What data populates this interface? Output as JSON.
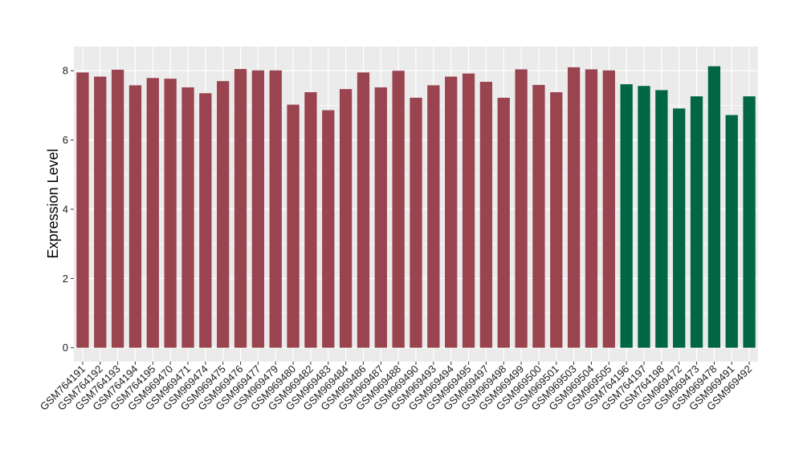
{
  "chart_data": {
    "type": "bar",
    "ylabel": "Expression Level",
    "xlabel": "",
    "ylim": [
      -0.4,
      8.7
    ],
    "yticks": [
      0,
      2,
      4,
      6,
      8
    ],
    "grid": true,
    "background": "#ebebeb",
    "grid_color": "#ffffff",
    "colors": {
      "group_a": "#9a4450",
      "group_b": "#006644"
    },
    "bars": [
      {
        "label": "GSM764191",
        "value": 7.95,
        "group": "group_a"
      },
      {
        "label": "GSM764192",
        "value": 7.83,
        "group": "group_a"
      },
      {
        "label": "GSM764193",
        "value": 8.03,
        "group": "group_a"
      },
      {
        "label": "GSM764194",
        "value": 7.58,
        "group": "group_a"
      },
      {
        "label": "GSM764195",
        "value": 7.79,
        "group": "group_a"
      },
      {
        "label": "GSM969470",
        "value": 7.77,
        "group": "group_a"
      },
      {
        "label": "GSM969471",
        "value": 7.52,
        "group": "group_a"
      },
      {
        "label": "GSM969474",
        "value": 7.35,
        "group": "group_a"
      },
      {
        "label": "GSM969475",
        "value": 7.7,
        "group": "group_a"
      },
      {
        "label": "GSM969476",
        "value": 8.05,
        "group": "group_a"
      },
      {
        "label": "GSM969477",
        "value": 8.01,
        "group": "group_a"
      },
      {
        "label": "GSM969479",
        "value": 8.01,
        "group": "group_a"
      },
      {
        "label": "GSM969480",
        "value": 7.02,
        "group": "group_a"
      },
      {
        "label": "GSM969482",
        "value": 7.38,
        "group": "group_a"
      },
      {
        "label": "GSM969483",
        "value": 6.86,
        "group": "group_a"
      },
      {
        "label": "GSM969484",
        "value": 7.47,
        "group": "group_a"
      },
      {
        "label": "GSM969486",
        "value": 7.95,
        "group": "group_a"
      },
      {
        "label": "GSM969487",
        "value": 7.52,
        "group": "group_a"
      },
      {
        "label": "GSM969488",
        "value": 8.0,
        "group": "group_a"
      },
      {
        "label": "GSM969490",
        "value": 7.22,
        "group": "group_a"
      },
      {
        "label": "GSM969493",
        "value": 7.58,
        "group": "group_a"
      },
      {
        "label": "GSM969494",
        "value": 7.83,
        "group": "group_a"
      },
      {
        "label": "GSM969495",
        "value": 7.92,
        "group": "group_a"
      },
      {
        "label": "GSM969497",
        "value": 7.68,
        "group": "group_a"
      },
      {
        "label": "GSM969498",
        "value": 7.22,
        "group": "group_a"
      },
      {
        "label": "GSM969499",
        "value": 8.04,
        "group": "group_a"
      },
      {
        "label": "GSM969500",
        "value": 7.59,
        "group": "group_a"
      },
      {
        "label": "GSM969501",
        "value": 7.38,
        "group": "group_a"
      },
      {
        "label": "GSM969503",
        "value": 8.1,
        "group": "group_a"
      },
      {
        "label": "GSM969504",
        "value": 8.04,
        "group": "group_a"
      },
      {
        "label": "GSM969505",
        "value": 8.01,
        "group": "group_a"
      },
      {
        "label": "GSM764196",
        "value": 7.61,
        "group": "group_b"
      },
      {
        "label": "GSM764197",
        "value": 7.56,
        "group": "group_b"
      },
      {
        "label": "GSM764198",
        "value": 7.44,
        "group": "group_b"
      },
      {
        "label": "GSM969472",
        "value": 6.91,
        "group": "group_b"
      },
      {
        "label": "GSM969473",
        "value": 7.26,
        "group": "group_b"
      },
      {
        "label": "GSM969478",
        "value": 8.13,
        "group": "group_b"
      },
      {
        "label": "GSM969491",
        "value": 6.72,
        "group": "group_b"
      },
      {
        "label": "GSM969492",
        "value": 7.26,
        "group": "group_b"
      }
    ]
  }
}
